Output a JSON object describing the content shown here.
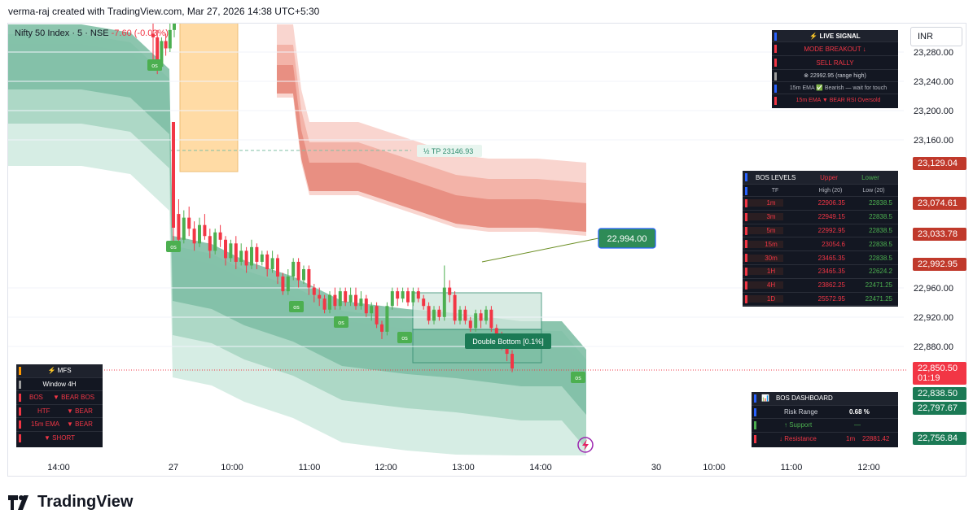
{
  "header": {
    "text": "verma-raj created with TradingView.com, Mar 27, 2026 14:38 UTC+5:30"
  },
  "symbol": {
    "name": "Nifty 50 Index · 5 · NSE",
    "change": "-7.60 (-0.03%)"
  },
  "currency": "INR",
  "brand": "TradingView",
  "colors": {
    "up": "#4caf50",
    "down": "#f23645",
    "teal": "#2e8b6e",
    "red_band": "#e57366",
    "orange_box": "#ffcc80"
  },
  "chart_data": {
    "type": "candlestick",
    "y_ticks": [
      "23,280.00",
      "23,240.00",
      "23,200.00",
      "23,160.00",
      "22,960.00",
      "22,920.00",
      "22,880.00"
    ],
    "x_ticks": [
      "14:00",
      "27",
      "10:00",
      "11:00",
      "12:00",
      "13:00",
      "14:00",
      "30",
      "10:00",
      "11:00",
      "12:00"
    ],
    "price_labels": [
      {
        "text": "23,129.04",
        "color": "#c0392b"
      },
      {
        "text": "23,074.61",
        "color": "#c0392b"
      },
      {
        "text": "23,033.78",
        "color": "#c0392b"
      },
      {
        "text": "22,992.95",
        "color": "#c0392b"
      },
      {
        "text": "22,850.50",
        "sub": "01:19",
        "color": "#f23645"
      },
      {
        "text": "22,838.50",
        "color": "#1b7a55"
      },
      {
        "text": "22,797.67",
        "color": "#1b7a55"
      },
      {
        "text": "22,756.84",
        "color": "#1b7a55"
      }
    ],
    "annotations": {
      "half_tp": "½ TP  23146.93",
      "callout": "22,994.00",
      "pattern": "Double Bottom [0.1%]",
      "os": "os"
    },
    "candles": [
      [
        23305,
        23300,
        23320,
        23270
      ],
      [
        23300,
        23260,
        23310,
        23250
      ],
      [
        23260,
        23295,
        23300,
        23255
      ],
      [
        23295,
        23285,
        23305,
        23275
      ],
      [
        23285,
        23310,
        23325,
        23280
      ],
      [
        23310,
        23330,
        23340,
        23300
      ],
      [
        23130,
        23060,
        23140,
        23010
      ],
      [
        23060,
        23025,
        23080,
        23015
      ],
      [
        23025,
        23055,
        23065,
        23020
      ],
      [
        23055,
        23040,
        23070,
        23030
      ],
      [
        23040,
        23020,
        23050,
        23010
      ],
      [
        23020,
        23045,
        23055,
        23015
      ],
      [
        23045,
        23030,
        23060,
        23025
      ],
      [
        23030,
        23010,
        23040,
        23000
      ],
      [
        23010,
        23035,
        23040,
        23005
      ],
      [
        23035,
        23025,
        23045,
        23015
      ],
      [
        23025,
        23000,
        23030,
        22990
      ],
      [
        23000,
        23020,
        23025,
        22995
      ],
      [
        23020,
        22995,
        23030,
        22985
      ],
      [
        22995,
        23010,
        23020,
        22990
      ],
      [
        23010,
        22990,
        23015,
        22980
      ],
      [
        22990,
        23015,
        23025,
        22985
      ],
      [
        23015,
        22995,
        23020,
        22985
      ],
      [
        22995,
        23005,
        23010,
        22990
      ],
      [
        23005,
        22985,
        23010,
        22975
      ],
      [
        22985,
        23000,
        23010,
        22980
      ],
      [
        23000,
        22975,
        23005,
        22965
      ],
      [
        22975,
        22955,
        22980,
        22950
      ],
      [
        22955,
        22975,
        22985,
        22950
      ],
      [
        22975,
        22995,
        23000,
        22970
      ],
      [
        22995,
        22970,
        23000,
        22960
      ],
      [
        22970,
        22985,
        22990,
        22965
      ],
      [
        22985,
        22960,
        22990,
        22950
      ],
      [
        22960,
        22950,
        22965,
        22940
      ],
      [
        22950,
        22945,
        22960,
        22935
      ],
      [
        22945,
        22930,
        22950,
        22925
      ],
      [
        22930,
        22950,
        22955,
        22925
      ],
      [
        22950,
        22935,
        22960,
        22930
      ],
      [
        22935,
        22955,
        22960,
        22930
      ],
      [
        22955,
        22940,
        22960,
        22935
      ],
      [
        22940,
        22950,
        22960,
        22935
      ],
      [
        22950,
        22935,
        22960,
        22930
      ],
      [
        22935,
        22945,
        22955,
        22930
      ],
      [
        22945,
        22925,
        22950,
        22920
      ],
      [
        22925,
        22935,
        22940,
        22915
      ],
      [
        22935,
        22910,
        22940,
        22905
      ],
      [
        22910,
        22900,
        22915,
        22890
      ],
      [
        22900,
        22935,
        22940,
        22895
      ],
      [
        22935,
        22955,
        22960,
        22930
      ],
      [
        22955,
        22945,
        22960,
        22935
      ],
      [
        22945,
        22955,
        22960,
        22940
      ],
      [
        22955,
        22940,
        22960,
        22935
      ],
      [
        22940,
        22955,
        22960,
        22935
      ],
      [
        22955,
        22945,
        22960,
        22940
      ],
      [
        22945,
        22935,
        22950,
        22930
      ],
      [
        22935,
        22915,
        22940,
        22910
      ],
      [
        22915,
        22930,
        22935,
        22910
      ],
      [
        22930,
        22920,
        22935,
        22915
      ],
      [
        22920,
        22960,
        22990,
        22915
      ],
      [
        22960,
        22950,
        22970,
        22940
      ],
      [
        22950,
        22915,
        22955,
        22910
      ],
      [
        22915,
        22930,
        22935,
        22910
      ],
      [
        22930,
        22915,
        22935,
        22910
      ],
      [
        22915,
        22905,
        22920,
        22900
      ],
      [
        22905,
        22925,
        22930,
        22900
      ],
      [
        22925,
        22915,
        22930,
        22905
      ],
      [
        22915,
        22930,
        22935,
        22910
      ],
      [
        22930,
        22905,
        22935,
        22900
      ],
      [
        22905,
        22895,
        22910,
        22885
      ],
      [
        22895,
        22885,
        22900,
        22875
      ],
      [
        22885,
        22870,
        22890,
        22860
      ],
      [
        22870,
        22850,
        22875,
        22845
      ]
    ]
  },
  "live_signal": {
    "title": "⚡ LIVE SIGNAL",
    "mode": "MODE  BREAKOUT ↓",
    "signal": "SELL RALLY",
    "range": "⊗ 22992.95 (range high)",
    "ema_line": "15m EMA ✅ Bearish — wait for touch",
    "rsi_line": "15m EMA  ▼ BEAR   RSI  Oversold"
  },
  "bos_levels": {
    "title": "BOS LEVELS",
    "upper": "Upper",
    "lower": "Lower",
    "sub": [
      "TF",
      "High (20)",
      "Low (20)"
    ],
    "rows": [
      [
        "1m",
        "22906.35",
        "22838.5"
      ],
      [
        "3m",
        "22949.15",
        "22838.5"
      ],
      [
        "5m",
        "22992.95",
        "22838.5"
      ],
      [
        "15m",
        "23054.6",
        "22838.5"
      ],
      [
        "30m",
        "23465.35",
        "22838.5"
      ],
      [
        "1H",
        "23465.35",
        "22624.2"
      ],
      [
        "4H",
        "23862.25",
        "22471.25"
      ],
      [
        "1D",
        "25572.95",
        "22471.25"
      ]
    ]
  },
  "mfs": {
    "title": "⚡  MFS",
    "window": "Window  4H",
    "bos": [
      "BOS",
      "▼ BEAR BOS"
    ],
    "htf": [
      "HTF",
      "▼ BEAR"
    ],
    "ema": [
      "15m EMA",
      "▼ BEAR"
    ],
    "signal": "▼ SHORT"
  },
  "bos_dash": {
    "title": "BOS DASHBOARD",
    "risk": [
      "Risk Range",
      "0.68 %"
    ],
    "support": [
      "↑ Support",
      "—"
    ],
    "resistance": [
      "↓ Resistance",
      "1m",
      "22881.42"
    ]
  }
}
